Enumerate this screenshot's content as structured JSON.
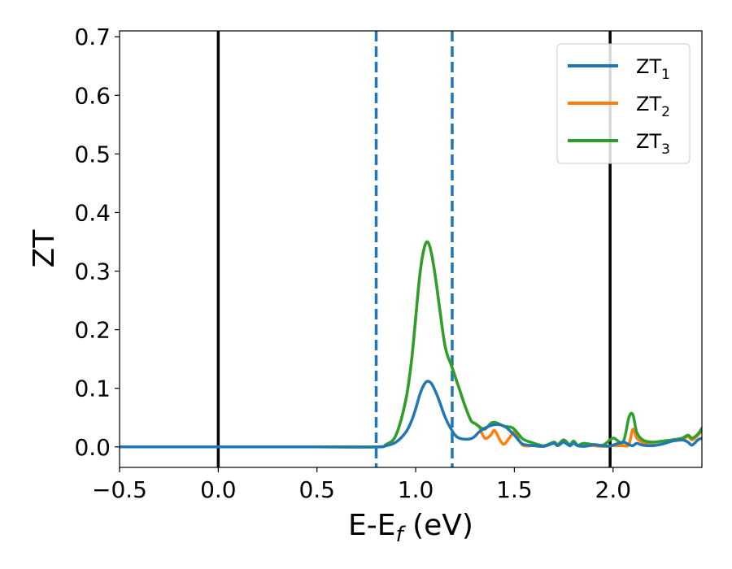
{
  "chart_data": {
    "type": "line",
    "xlabel_main": "E-E",
    "xlabel_sub": "f",
    "xlabel_tail": " (eV)",
    "ylabel": "ZT",
    "xlim": [
      -0.5,
      2.45
    ],
    "ylim": [
      -0.035,
      0.71
    ],
    "xticks": [
      -0.5,
      0.0,
      0.5,
      1.0,
      1.5,
      2.0
    ],
    "xtick_labels": [
      "−0.5",
      "0.0",
      "0.5",
      "1.0",
      "1.5",
      "2.0"
    ],
    "yticks": [
      0.0,
      0.1,
      0.2,
      0.3,
      0.4,
      0.5,
      0.6,
      0.7
    ],
    "ytick_labels": [
      "0.0",
      "0.1",
      "0.2",
      "0.3",
      "0.4",
      "0.5",
      "0.6",
      "0.7"
    ],
    "grid": false,
    "legend_position": "top-right",
    "vertical_lines": [
      {
        "x": 0.0,
        "style": "solid",
        "color": "#000000"
      },
      {
        "x": 1.985,
        "style": "solid",
        "color": "#000000"
      },
      {
        "x": 0.8,
        "style": "dashed",
        "color": "#1f77b4"
      },
      {
        "x": 1.185,
        "style": "dashed",
        "color": "#1f77b4"
      }
    ],
    "series": [
      {
        "name": "ZT",
        "subscript": "1",
        "color": "#1f77b4",
        "x": [
          -0.5,
          0.5,
          0.8,
          0.85,
          0.9,
          0.95,
          0.98,
          1.0,
          1.02,
          1.04,
          1.06,
          1.08,
          1.1,
          1.12,
          1.15,
          1.18,
          1.2,
          1.22,
          1.25,
          1.28,
          1.3,
          1.32,
          1.35,
          1.4,
          1.45,
          1.5,
          1.53,
          1.55,
          1.6,
          1.65,
          1.7,
          1.72,
          1.75,
          1.78,
          1.8,
          1.82,
          1.85,
          1.88,
          1.9,
          1.95,
          1.98,
          2.0,
          2.05,
          2.08,
          2.1,
          2.12,
          2.15,
          2.2,
          2.25,
          2.3,
          2.35,
          2.38,
          2.4,
          2.43,
          2.45
        ],
        "y": [
          0,
          0,
          0,
          0.002,
          0.008,
          0.025,
          0.045,
          0.065,
          0.088,
          0.105,
          0.112,
          0.108,
          0.095,
          0.078,
          0.05,
          0.03,
          0.02,
          0.015,
          0.013,
          0.014,
          0.018,
          0.025,
          0.032,
          0.038,
          0.035,
          0.02,
          0.008,
          0.004,
          0.002,
          0.001,
          0.006,
          0.002,
          0.008,
          0.002,
          0.006,
          0.002,
          0.001,
          0.002,
          0.004,
          0.002,
          0.001,
          0.003,
          0.008,
          0.004,
          0.002,
          0.006,
          0.003,
          0.002,
          0.005,
          0.01,
          0.012,
          0.008,
          0.003,
          0.012,
          0.015
        ]
      },
      {
        "name": "ZT",
        "subscript": "2",
        "color": "#ff7f0e",
        "x": [
          -0.5,
          0.5,
          0.8,
          0.85,
          0.9,
          0.95,
          0.98,
          1.0,
          1.02,
          1.04,
          1.06,
          1.08,
          1.1,
          1.12,
          1.15,
          1.18,
          1.2,
          1.22,
          1.25,
          1.28,
          1.3,
          1.32,
          1.35,
          1.38,
          1.4,
          1.43,
          1.45,
          1.48,
          1.5,
          1.53,
          1.55,
          1.6,
          1.65,
          1.7,
          1.72,
          1.75,
          1.78,
          1.8,
          1.82,
          1.85,
          1.9,
          1.95,
          2.0,
          2.05,
          2.08,
          2.1,
          2.12,
          2.15,
          2.2,
          2.25,
          2.3,
          2.35,
          2.38,
          2.4,
          2.43,
          2.45
        ],
        "y": [
          0,
          0,
          0,
          0.004,
          0.02,
          0.08,
          0.15,
          0.22,
          0.29,
          0.335,
          0.35,
          0.33,
          0.29,
          0.24,
          0.17,
          0.14,
          0.12,
          0.1,
          0.07,
          0.045,
          0.04,
          0.035,
          0.015,
          0.02,
          0.028,
          0.01,
          0.005,
          0.018,
          0.025,
          0.008,
          0.002,
          0.002,
          0.001,
          0.008,
          0.002,
          0.012,
          0.002,
          0.01,
          0.002,
          0.003,
          0.002,
          0.001,
          0.002,
          0.002,
          0.004,
          0.03,
          0.015,
          0.008,
          0.003,
          0.005,
          0.01,
          0.012,
          0.018,
          0.012,
          0.02,
          0.028
        ]
      },
      {
        "name": "ZT",
        "subscript": "3",
        "color": "#2ca02c",
        "x": [
          -0.5,
          0.5,
          0.8,
          0.85,
          0.9,
          0.95,
          0.98,
          1.0,
          1.02,
          1.04,
          1.06,
          1.08,
          1.1,
          1.12,
          1.15,
          1.18,
          1.2,
          1.22,
          1.25,
          1.28,
          1.3,
          1.32,
          1.35,
          1.38,
          1.4,
          1.43,
          1.45,
          1.48,
          1.5,
          1.53,
          1.55,
          1.6,
          1.65,
          1.7,
          1.72,
          1.75,
          1.78,
          1.8,
          1.82,
          1.85,
          1.9,
          1.95,
          2.0,
          2.05,
          2.08,
          2.1,
          2.12,
          2.15,
          2.2,
          2.25,
          2.3,
          2.35,
          2.38,
          2.4,
          2.43,
          2.45
        ],
        "y": [
          0,
          0,
          0,
          0.004,
          0.02,
          0.08,
          0.15,
          0.22,
          0.29,
          0.335,
          0.35,
          0.33,
          0.29,
          0.24,
          0.17,
          0.14,
          0.12,
          0.1,
          0.07,
          0.045,
          0.04,
          0.035,
          0.03,
          0.04,
          0.042,
          0.038,
          0.035,
          0.034,
          0.03,
          0.018,
          0.012,
          0.006,
          0.002,
          0.008,
          0.004,
          0.012,
          0.004,
          0.01,
          0.003,
          0.006,
          0.004,
          0.003,
          0.015,
          0.008,
          0.05,
          0.055,
          0.025,
          0.012,
          0.008,
          0.01,
          0.012,
          0.015,
          0.02,
          0.015,
          0.022,
          0.032
        ]
      }
    ]
  }
}
